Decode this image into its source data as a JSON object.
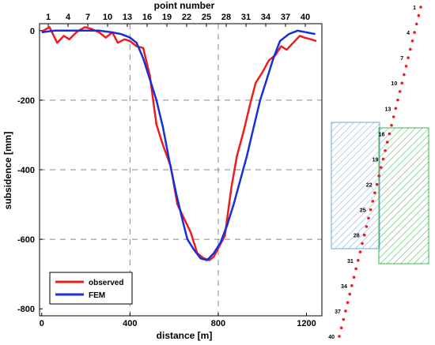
{
  "chart_data": {
    "type": "line",
    "xlabel": "distance [m]",
    "ylabel": "subsidence [mm]",
    "top_axis_label": "point number",
    "xlim": [
      -10,
      1270
    ],
    "ylim": [
      -820,
      20
    ],
    "x_ticks": [
      0,
      400,
      800,
      1200
    ],
    "y_ticks": [
      0,
      -200,
      -400,
      -600,
      -800
    ],
    "top_ticks": [
      1,
      4,
      7,
      10,
      13,
      16,
      19,
      22,
      25,
      28,
      31,
      34,
      37,
      40
    ],
    "grid": "dashed at x=400, 800 and y=-200, -400, -600",
    "legend": {
      "position": "bottom-left",
      "entries": [
        "observed",
        "FEM"
      ]
    },
    "series": [
      {
        "name": "observed",
        "color": "#ee1c1c",
        "x": [
          0,
          35,
          70,
          100,
          125,
          160,
          195,
          225,
          260,
          290,
          320,
          345,
          375,
          400,
          430,
          460,
          490,
          520,
          550,
          585,
          615,
          645,
          675,
          705,
          735,
          760,
          780,
          805,
          830,
          860,
          885,
          915,
          945,
          970,
          1000,
          1030,
          1060,
          1085,
          1110,
          1140,
          1170,
          1190,
          1220,
          1245
        ],
        "y": [
          -3,
          10,
          -35,
          -15,
          -25,
          -3,
          10,
          5,
          -5,
          -20,
          -5,
          -35,
          -25,
          -30,
          -45,
          -50,
          -130,
          -270,
          -330,
          -390,
          -500,
          -540,
          -580,
          -640,
          -655,
          -660,
          -650,
          -620,
          -590,
          -450,
          -360,
          -290,
          -210,
          -150,
          -120,
          -85,
          -70,
          -45,
          -55,
          -35,
          -15,
          -20,
          -25,
          -30
        ]
      },
      {
        "name": "FEM",
        "color": "#1a2ed8",
        "x": [
          0,
          30,
          60,
          100,
          140,
          200,
          260,
          320,
          360,
          400,
          430,
          460,
          490,
          520,
          550,
          580,
          610,
          640,
          660,
          690,
          720,
          750,
          780,
          810,
          840,
          870,
          900,
          930,
          960,
          990,
          1020,
          1050,
          1080,
          1120,
          1160,
          1200,
          1240
        ],
        "y": [
          -5,
          -2,
          0,
          0,
          0,
          0,
          0,
          -5,
          -10,
          -20,
          -35,
          -80,
          -140,
          -200,
          -280,
          -380,
          -470,
          -550,
          -600,
          -630,
          -655,
          -660,
          -640,
          -610,
          -560,
          -500,
          -430,
          -360,
          -280,
          -200,
          -140,
          -80,
          -30,
          -10,
          0,
          -5,
          -10
        ]
      }
    ]
  },
  "section_diagram": {
    "point_labels": [
      "1",
      "4",
      "7",
      "10",
      "13",
      "16",
      "19",
      "22",
      "25",
      "28",
      "31",
      "34",
      "37",
      "40"
    ],
    "point_color": "#ee1c1c",
    "blue_block_color": "#5a9bd5",
    "green_block_color": "#2db24a"
  }
}
